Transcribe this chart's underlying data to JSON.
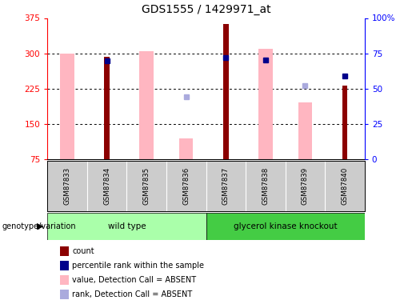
{
  "title": "GDS1555 / 1429971_at",
  "samples": [
    "GSM87833",
    "GSM87834",
    "GSM87835",
    "GSM87836",
    "GSM87837",
    "GSM87838",
    "GSM87839",
    "GSM87840"
  ],
  "ylim_left": [
    75,
    375
  ],
  "ylim_right": [
    0,
    100
  ],
  "yticks_left": [
    75,
    150,
    225,
    300,
    375
  ],
  "yticks_right": [
    0,
    25,
    50,
    75,
    100
  ],
  "ytick_labels_right": [
    "0",
    "25",
    "50",
    "75",
    "100%"
  ],
  "red_bars": [
    null,
    292,
    null,
    null,
    362,
    null,
    null,
    232
  ],
  "blue_squares": [
    null,
    284,
    null,
    null,
    290,
    285,
    null,
    252
  ],
  "pink_bars": [
    300,
    null,
    305,
    118,
    null,
    310,
    195,
    null
  ],
  "lightblue_squares": [
    null,
    null,
    null,
    207,
    null,
    null,
    232,
    null
  ],
  "pink_bar_bottom": 75,
  "red_color": "#8B0000",
  "blue_color": "#00008B",
  "pink_color": "#FFB6C1",
  "lightblue_color": "#AAAADD",
  "bg_color": "#FFFFFF",
  "plot_bg": "#FFFFFF",
  "label_bg": "#CCCCCC",
  "genotype_groups": [
    {
      "label": "wild type",
      "samples": [
        0,
        1,
        2,
        3
      ],
      "color": "#AAFFAA"
    },
    {
      "label": "glycerol kinase knockout",
      "samples": [
        4,
        5,
        6,
        7
      ],
      "color": "#44CC44"
    }
  ],
  "legend_items": [
    {
      "label": "count",
      "color": "#8B0000"
    },
    {
      "label": "percentile rank within the sample",
      "color": "#00008B"
    },
    {
      "label": "value, Detection Call = ABSENT",
      "color": "#FFB6C1"
    },
    {
      "label": "rank, Detection Call = ABSENT",
      "color": "#AAAADD"
    }
  ],
  "genotype_label": "genotype/variation"
}
